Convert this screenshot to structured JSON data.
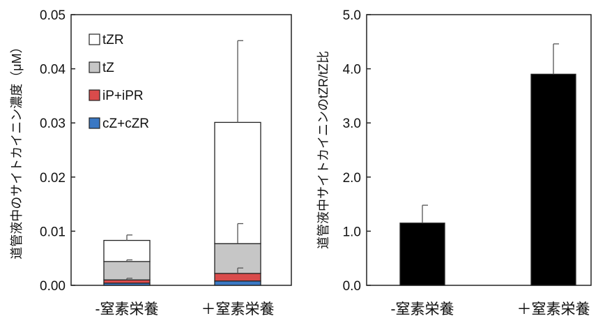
{
  "chart_data": [
    {
      "type": "bar",
      "stacked": true,
      "ylabel": "道管液中のサイトカイニン濃度（μM）",
      "ylim": [
        0,
        0.05
      ],
      "yticks": [
        "0.00",
        "0.01",
        "0.02",
        "0.03",
        "0.04",
        "0.05"
      ],
      "categories": [
        "-窒素栄養",
        "＋窒素栄養"
      ],
      "legend_position": "top-left",
      "series": [
        {
          "name": "cZ+cZR",
          "color": "#3a78c4",
          "values": [
            0.0004,
            0.0008
          ],
          "errors": [
            0.0,
            0.0
          ]
        },
        {
          "name": "iP+iPR",
          "color": "#d94b4b",
          "values": [
            0.0006,
            0.0014
          ],
          "errors": [
            0.0003,
            0.001
          ]
        },
        {
          "name": "tZ",
          "color": "#c6c6c6",
          "values": [
            0.0034,
            0.0055
          ],
          "errors": [
            0.0003,
            0.0037
          ]
        },
        {
          "name": "tZR",
          "color": "#ffffff",
          "values": [
            0.0039,
            0.0224
          ],
          "errors": [
            0.001,
            0.0151
          ]
        }
      ],
      "legend_order": [
        "tZR",
        "tZ",
        "iP+iPR",
        "cZ+cZR"
      ]
    },
    {
      "type": "bar",
      "ylabel": "道管液中サイトカイニンのtZR/tZ比",
      "ylim": [
        0,
        5.0
      ],
      "yticks": [
        "0.0",
        "1.0",
        "2.0",
        "3.0",
        "4.0",
        "5.0"
      ],
      "categories": [
        "-窒素栄養",
        "＋窒素栄養"
      ],
      "series": [
        {
          "color": "#000000",
          "values": [
            1.15,
            3.9
          ],
          "errors": [
            0.33,
            0.56
          ]
        }
      ]
    }
  ]
}
